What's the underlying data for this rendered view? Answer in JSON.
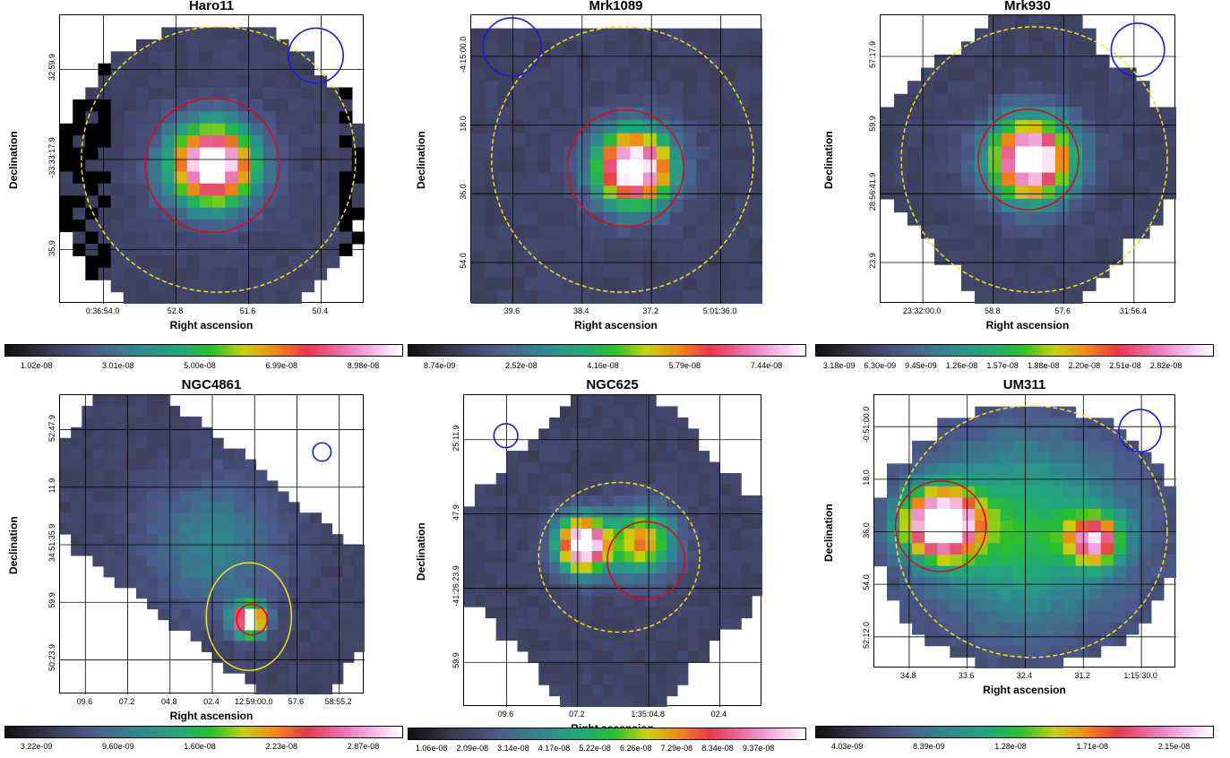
{
  "figure": {
    "panels": [
      {
        "title": "Haro11",
        "ylabel": "Declination",
        "xlabel": "Right ascension",
        "yticks": [
          "32:59.9",
          "-33:33:17.9",
          "35.9"
        ],
        "xticks": [
          "0:36:54.0",
          "52.8",
          "51.6",
          "50.4"
        ],
        "colorbar_ticks": [
          "1.02e-08",
          "3.01e-08",
          "5.00e-08",
          "6.99e-08",
          "8.98e-08"
        ]
      },
      {
        "title": "Mrk1089",
        "ylabel": "Declination",
        "xlabel": "Right ascension",
        "yticks": [
          "-4:15:00.0",
          "18.0",
          "36.0",
          "54.0"
        ],
        "xticks": [
          "39.6",
          "38.4",
          "37.2",
          "5:01:36.0"
        ],
        "colorbar_ticks": [
          "8.74e-09",
          "2.52e-08",
          "4.16e-08",
          "5.79e-08",
          "7.44e-08"
        ]
      },
      {
        "title": "Mrk930",
        "ylabel": "Declination",
        "xlabel": "Right ascension",
        "yticks": [
          "57:17.9",
          "59.9",
          "28:56:41.9",
          "23.9"
        ],
        "xticks": [
          "23:32:00.0",
          "58.8",
          "57.6",
          "31:56.4"
        ],
        "colorbar_ticks": [
          "3.18e-09",
          "6.30e-09",
          "9.45e-09",
          "1.26e-08",
          "1.57e-08",
          "1.88e-08",
          "2.20e-08",
          "2.51e-08",
          "2.82e-08"
        ]
      },
      {
        "title": "NGC4861",
        "ylabel": "Declination",
        "xlabel": "Right ascension",
        "yticks": [
          "52:47.9",
          "11.9",
          "34:51:35.9",
          "59.9",
          "50:23.9"
        ],
        "xticks": [
          "09.6",
          "07.2",
          "04.8",
          "02.4",
          "12:59:00.0",
          "57.6",
          "58:55.2"
        ],
        "colorbar_ticks": [
          "3.22e-09",
          "9.60e-09",
          "1.60e-08",
          "2.23e-08",
          "2.87e-08"
        ]
      },
      {
        "title": "NGC625",
        "ylabel": "Declination",
        "xlabel": "Right ascension",
        "yticks": [
          "25:11.9",
          "47.9",
          "-41:26:23.9",
          "59.9"
        ],
        "xticks": [
          "09.6",
          "07.2",
          "1:35:04.8",
          "02.4"
        ],
        "colorbar_ticks": [
          "1.06e-08",
          "2.09e-08",
          "3.14e-08",
          "4.17e-08",
          "5.22e-08",
          "6.26e-08",
          "7.29e-08",
          "8.34e-08",
          "9.37e-08"
        ]
      },
      {
        "title": "UM311",
        "ylabel": "Declination",
        "xlabel": "Right ascension",
        "yticks": [
          "-0:51:00.0",
          "18.0",
          "36.0",
          "54.0",
          "52:12.0"
        ],
        "xticks": [
          "34.8",
          "33.6",
          "32.4",
          "31.2",
          "1:15:30.0"
        ],
        "colorbar_ticks": [
          "4.03e-09",
          "8.39e-09",
          "1.28e-08",
          "1.71e-08",
          "2.15e-08"
        ]
      }
    ]
  }
}
